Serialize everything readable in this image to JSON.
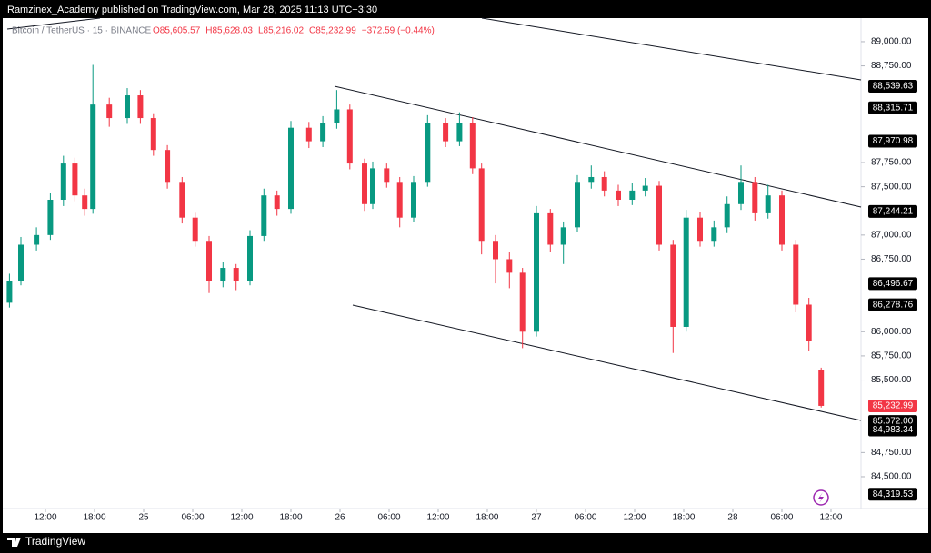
{
  "header": "Ramzinex_Academy published on TradingView.com, Mar 28, 2025 11:13 UTC+3:30",
  "footer": "TradingView",
  "chart_data": {
    "type": "candlestick",
    "legend_symbol": "Bitcoin / TetherUS · 15 · BINANCE",
    "legend_values": [
      "O85,605.57",
      "H85,628.03",
      "L85,216.02",
      "C85,232.99",
      "−372.59 (−0.44%)"
    ],
    "up_color": "#089981",
    "down_color": "#f23645",
    "x": [
      7.6,
      9,
      10.9,
      12.6,
      14.2,
      15.6,
      16.8,
      17.8,
      19.8,
      22,
      23.6,
      25.2,
      26.9,
      28.7,
      30.3,
      32,
      33.7,
      35.3,
      37,
      38.7,
      40.3,
      42,
      44.2,
      45.9,
      47.6,
      49.2,
      51,
      52,
      53.7,
      55.3,
      57,
      58.7,
      60.9,
      62.6,
      64.2,
      65.3,
      67,
      68.7,
      70.3,
      72,
      73.7,
      75.3,
      77,
      78.7,
      80.3,
      82,
      83.7,
      85.3,
      87,
      88.7,
      90.3,
      92,
      93.7,
      95.3,
      97,
      98.7,
      100.3,
      102,
      103.7,
      105.3,
      106.8
    ],
    "open": [
      86300,
      86520,
      86900,
      87000,
      87365,
      87740,
      87410,
      87270,
      88350,
      88210,
      88445,
      88210,
      87880,
      87550,
      87180,
      86940,
      86520,
      86660,
      86520,
      86990,
      87410,
      87270,
      88110,
      87970,
      88160,
      88300,
      87740,
      87320,
      87690,
      87550,
      87180,
      87550,
      88160,
      87970,
      88160,
      87690,
      86940,
      86750,
      86610,
      86000,
      87225,
      86900,
      87080,
      87550,
      87600,
      87460,
      87365,
      87460,
      87510,
      86900,
      86050,
      87180,
      86940,
      87080,
      87320,
      87550,
      87225,
      87410,
      86900,
      86280,
      85605.57
    ],
    "high": [
      86600,
      86980,
      87080,
      87440,
      87820,
      87800,
      87480,
      88760,
      88420,
      88520,
      88500,
      88260,
      87930,
      87600,
      87230,
      86990,
      86720,
      86700,
      87050,
      87480,
      87460,
      88180,
      88170,
      88230,
      88500,
      88350,
      87790,
      87760,
      87740,
      87600,
      87610,
      88240,
      88210,
      88270,
      88220,
      87740,
      87000,
      86820,
      86660,
      87300,
      87270,
      87140,
      87620,
      87720,
      87660,
      87520,
      87540,
      87590,
      87560,
      86950,
      87260,
      87240,
      87150,
      87400,
      87720,
      87600,
      87520,
      87460,
      86950,
      86350,
      85628.03
    ],
    "low": [
      86250,
      86480,
      86840,
      86950,
      87300,
      87350,
      87200,
      87220,
      88120,
      88150,
      88150,
      87820,
      87480,
      87120,
      86880,
      86400,
      86460,
      86430,
      86480,
      86940,
      87200,
      87220,
      87900,
      87910,
      88100,
      87680,
      87250,
      87270,
      87490,
      87080,
      87130,
      87500,
      87910,
      87920,
      87630,
      86800,
      86500,
      86450,
      85830,
      85950,
      86820,
      86700,
      87030,
      87480,
      87400,
      87300,
      87310,
      87400,
      86840,
      85780,
      86000,
      86880,
      86880,
      87020,
      87260,
      87150,
      87170,
      86840,
      86200,
      85800,
      85216.02
    ],
    "close": [
      86520,
      86900,
      87000,
      87365,
      87740,
      87410,
      87270,
      88350,
      88210,
      88445,
      88210,
      87880,
      87550,
      87180,
      86940,
      86520,
      86660,
      86520,
      86990,
      87410,
      87270,
      88110,
      87970,
      88160,
      88300,
      87740,
      87320,
      87690,
      87550,
      87180,
      87550,
      88160,
      87970,
      88160,
      87690,
      86940,
      86750,
      86610,
      86000,
      87225,
      86900,
      87080,
      87550,
      87600,
      87460,
      87365,
      87460,
      87510,
      86900,
      86050,
      87180,
      86940,
      87080,
      87320,
      87550,
      87225,
      87410,
      86900,
      86280,
      85900,
      85232.99
    ],
    "xlim": [
      7.333,
      111.667
    ],
    "ylim": [
      84171,
      89225
    ],
    "grid": false,
    "xticks": [
      {
        "value": 12,
        "label": "12:00"
      },
      {
        "value": 18,
        "label": "18:00"
      },
      {
        "value": 24,
        "label": "25"
      },
      {
        "value": 30,
        "label": "06:00"
      },
      {
        "value": 36,
        "label": "12:00"
      },
      {
        "value": 42,
        "label": "18:00"
      },
      {
        "value": 48,
        "label": "26"
      },
      {
        "value": 54,
        "label": "06:00"
      },
      {
        "value": 60,
        "label": "12:00"
      },
      {
        "value": 66,
        "label": "18:00"
      },
      {
        "value": 72,
        "label": "27"
      },
      {
        "value": 78,
        "label": "06:00"
      },
      {
        "value": 84,
        "label": "12:00"
      },
      {
        "value": 90,
        "label": "18:00"
      },
      {
        "value": 96,
        "label": "28"
      },
      {
        "value": 102,
        "label": "06:00"
      },
      {
        "value": 108,
        "label": "12:00"
      }
    ],
    "yticks": [
      {
        "value": 89000,
        "label": "89,000.00"
      },
      {
        "value": 88750,
        "label": "88,750.00"
      },
      {
        "value": 87750,
        "label": "87,750.00"
      },
      {
        "value": 87500,
        "label": "87,500.00"
      },
      {
        "value": 87000,
        "label": "87,000.00"
      },
      {
        "value": 86750,
        "label": "86,750.00"
      },
      {
        "value": 86000,
        "label": "86,000.00"
      },
      {
        "value": 85750,
        "label": "85,750.00"
      },
      {
        "value": 85500,
        "label": "85,500.00"
      },
      {
        "value": 84750,
        "label": "84,750.00"
      },
      {
        "value": 84500,
        "label": "84,500.00"
      }
    ],
    "price_labels": [
      {
        "value": 88539.63,
        "label": "88,539.63",
        "color": "#000000"
      },
      {
        "value": 88315.71,
        "label": "88,315.71",
        "color": "#000000"
      },
      {
        "value": 87970.98,
        "label": "87,970.98",
        "color": "#000000"
      },
      {
        "value": 87244.21,
        "label": "87,244.21",
        "color": "#000000"
      },
      {
        "value": 86496.67,
        "label": "86,496.67",
        "color": "#000000"
      },
      {
        "value": 86278.76,
        "label": "86,278.76",
        "color": "#000000"
      },
      {
        "value": 85232.99,
        "label": "85,232.99",
        "color": "#f23645"
      },
      {
        "value": 85072.0,
        "label": "85,072.00",
        "color": "#000000"
      },
      {
        "value": 84983.34,
        "label": "84,983.34",
        "color": "#000000"
      },
      {
        "value": 84319.53,
        "label": "84,319.53",
        "color": "#000000"
      }
    ]
  }
}
